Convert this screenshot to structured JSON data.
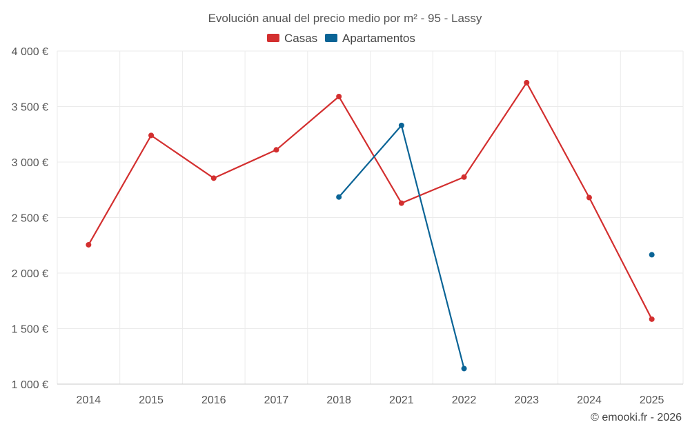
{
  "chart_data": {
    "type": "line",
    "title": "Evolución anual del precio medio por m² - 95 - Lassy",
    "categories": [
      "2014",
      "2015",
      "2016",
      "2017",
      "2018",
      "2021",
      "2022",
      "2023",
      "2024",
      "2025"
    ],
    "series": [
      {
        "name": "Casas",
        "color": "#d32f2f",
        "values": [
          2255,
          3240,
          2855,
          3110,
          3590,
          2630,
          2865,
          3715,
          2680,
          1585
        ]
      },
      {
        "name": "Apartamentos",
        "color": "#0a6496",
        "values": [
          null,
          null,
          null,
          null,
          2685,
          3330,
          1140,
          null,
          null,
          2165
        ]
      }
    ],
    "ylim": [
      1000,
      4000
    ],
    "yticks": [
      {
        "value": 1000,
        "label": "1 000 €"
      },
      {
        "value": 1500,
        "label": "1 500 €"
      },
      {
        "value": 2000,
        "label": "2 000 €"
      },
      {
        "value": 2500,
        "label": "2 500 €"
      },
      {
        "value": 3000,
        "label": "3 000 €"
      },
      {
        "value": 3500,
        "label": "3 500 €"
      },
      {
        "value": 4000,
        "label": "4 000 €"
      }
    ],
    "grid": true,
    "legend": "top-center",
    "credit": "© emooki.fr - 2026"
  }
}
